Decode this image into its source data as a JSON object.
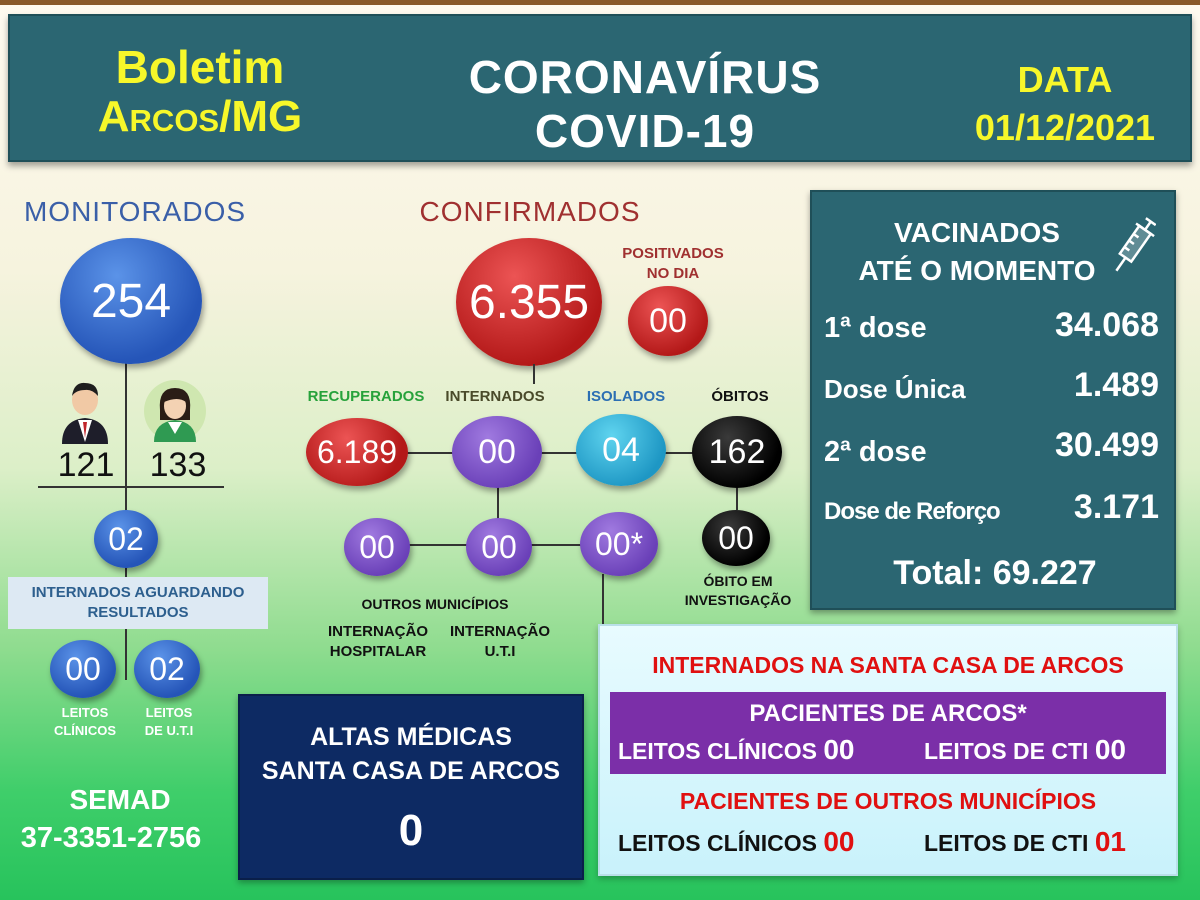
{
  "header": {
    "left_line1": "Boletim",
    "left_line2": "Arcos/MG",
    "center_line1": "CORONAVÍRUS",
    "center_line2": "COVID-19",
    "date_label": "DATA",
    "date_value": "01/12/2021"
  },
  "monitorados": {
    "title": "MONITORADOS",
    "total": "254",
    "male": "121",
    "female": "133",
    "internados_aguardando": "02",
    "internados_aguardando_label_1": "INTERNADOS AGUARDANDO",
    "internados_aguardando_label_2": "RESULTADOS",
    "leitos_clinicos": "00",
    "leitos_uti": "02",
    "leitos_clinicos_label_1": "LEITOS",
    "leitos_clinicos_label_2": "CLÍNICOS",
    "leitos_uti_label_1": "LEITOS",
    "leitos_uti_label_2": "DE  U.T.I"
  },
  "contact": {
    "org": "SEMAD",
    "phone": "37-3351-2756"
  },
  "confirmados": {
    "title": "CONFIRMADOS",
    "total": "6.355",
    "positivos_label_1": "POSITIVADOS",
    "positivos_label_2": "NO DIA",
    "positivos_dia": "00",
    "recuperados_label": "RECUPERADOS",
    "recuperados": "6.189",
    "internados_label": "INTERNADOS",
    "internados": "00",
    "isolados_label": "ISOLADOS",
    "isolados": "04",
    "obitos_label": "ÓBITOS",
    "obitos": "162",
    "obito_investigacao": "00",
    "obito_investigacao_label_1": "ÓBITO EM",
    "obito_investigacao_label_2": "INVESTIGAÇÃO",
    "internacao_hospitalar": "00",
    "internacao_uti": "00",
    "internados_arcos": "00*",
    "outros_municipios_label": "OUTROS MUNICÍPIOS",
    "internacao_hospitalar_label_1": "INTERNAÇÃO",
    "internacao_hospitalar_label_2": "HOSPITALAR",
    "internacao_uti_label_1": "INTERNAÇÃO",
    "internacao_uti_label_2": "U.T.I"
  },
  "vacinados": {
    "title_1": "VACINADOS",
    "title_2": "ATÉ O MOMENTO",
    "icon": "syringe-icon",
    "rows": [
      {
        "label": "1ª dose",
        "value": "34.068"
      },
      {
        "label": "Dose Única",
        "value": "1.489"
      },
      {
        "label": "2ª dose",
        "value": "30.499"
      },
      {
        "label": "Dose de Reforço",
        "value": "3.171"
      }
    ],
    "total": "Total: 69.227"
  },
  "altas": {
    "title_1": "ALTAS MÉDICAS",
    "title_2": "SANTA CASA DE ARCOS",
    "value": "0"
  },
  "santa_casa": {
    "title": "INTERNADOS NA SANTA CASA DE ARCOS",
    "arcos_title": "PACIENTES DE ARCOS*",
    "arcos_clinicos_label": "LEITOS CLÍNICOS",
    "arcos_clinicos": "00",
    "arcos_cti_label": "LEITOS DE CTI",
    "arcos_cti": "00",
    "outros_title": "PACIENTES DE OUTROS MUNICÍPIOS",
    "outros_clinicos_label": "LEITOS CLÍNICOS",
    "outros_clinicos": "00",
    "outros_cti_label": "LEITOS DE CTI",
    "outros_cti": "01"
  },
  "colors": {
    "header_bg": "#2b6672",
    "yellow": "#f7f72a",
    "recuperados": "#27a23b",
    "internados": "#4a4a2a",
    "isolados": "#2c6fb3",
    "confirmados": "#a03030",
    "monitorados": "#3a5fa8"
  }
}
